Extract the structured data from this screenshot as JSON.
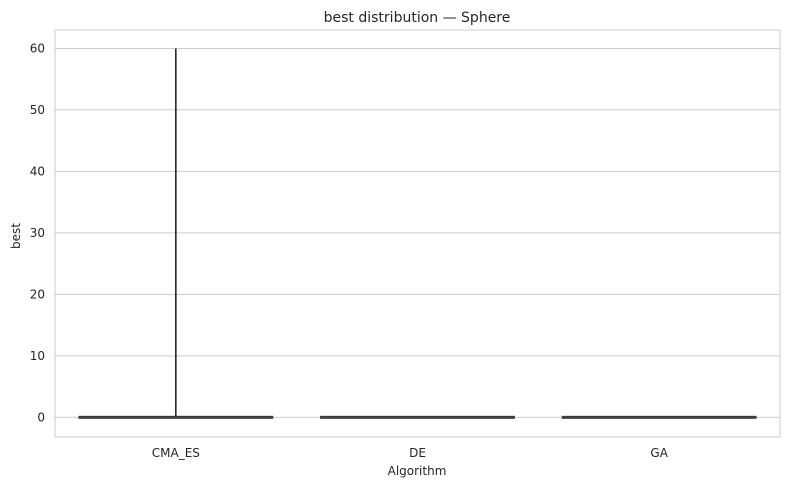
{
  "chart_data": {
    "type": "box",
    "title": "best distribution — Sphere",
    "xlabel": "Algorithm",
    "ylabel": "best",
    "categories": [
      "CMA_ES",
      "DE",
      "GA"
    ],
    "ylim": [
      -3.2,
      63
    ],
    "yticks": [
      0,
      10,
      20,
      30,
      40,
      50,
      60
    ],
    "grid": "horizontal",
    "boxes": [
      {
        "category": "CMA_ES",
        "min": 0,
        "q1": 0,
        "median": 0,
        "q3": 0,
        "max": 60
      },
      {
        "category": "DE",
        "min": 0,
        "q1": 0,
        "median": 0,
        "q3": 0,
        "max": 0
      },
      {
        "category": "GA",
        "min": 0,
        "q1": 0,
        "median": 0,
        "q3": 0,
        "max": 0
      }
    ],
    "colors": {
      "grid": "#cccccc",
      "frame": "#cccccc",
      "box": "#3d3d3d",
      "whisker": "#1a1a1a",
      "text": "#262626"
    }
  }
}
